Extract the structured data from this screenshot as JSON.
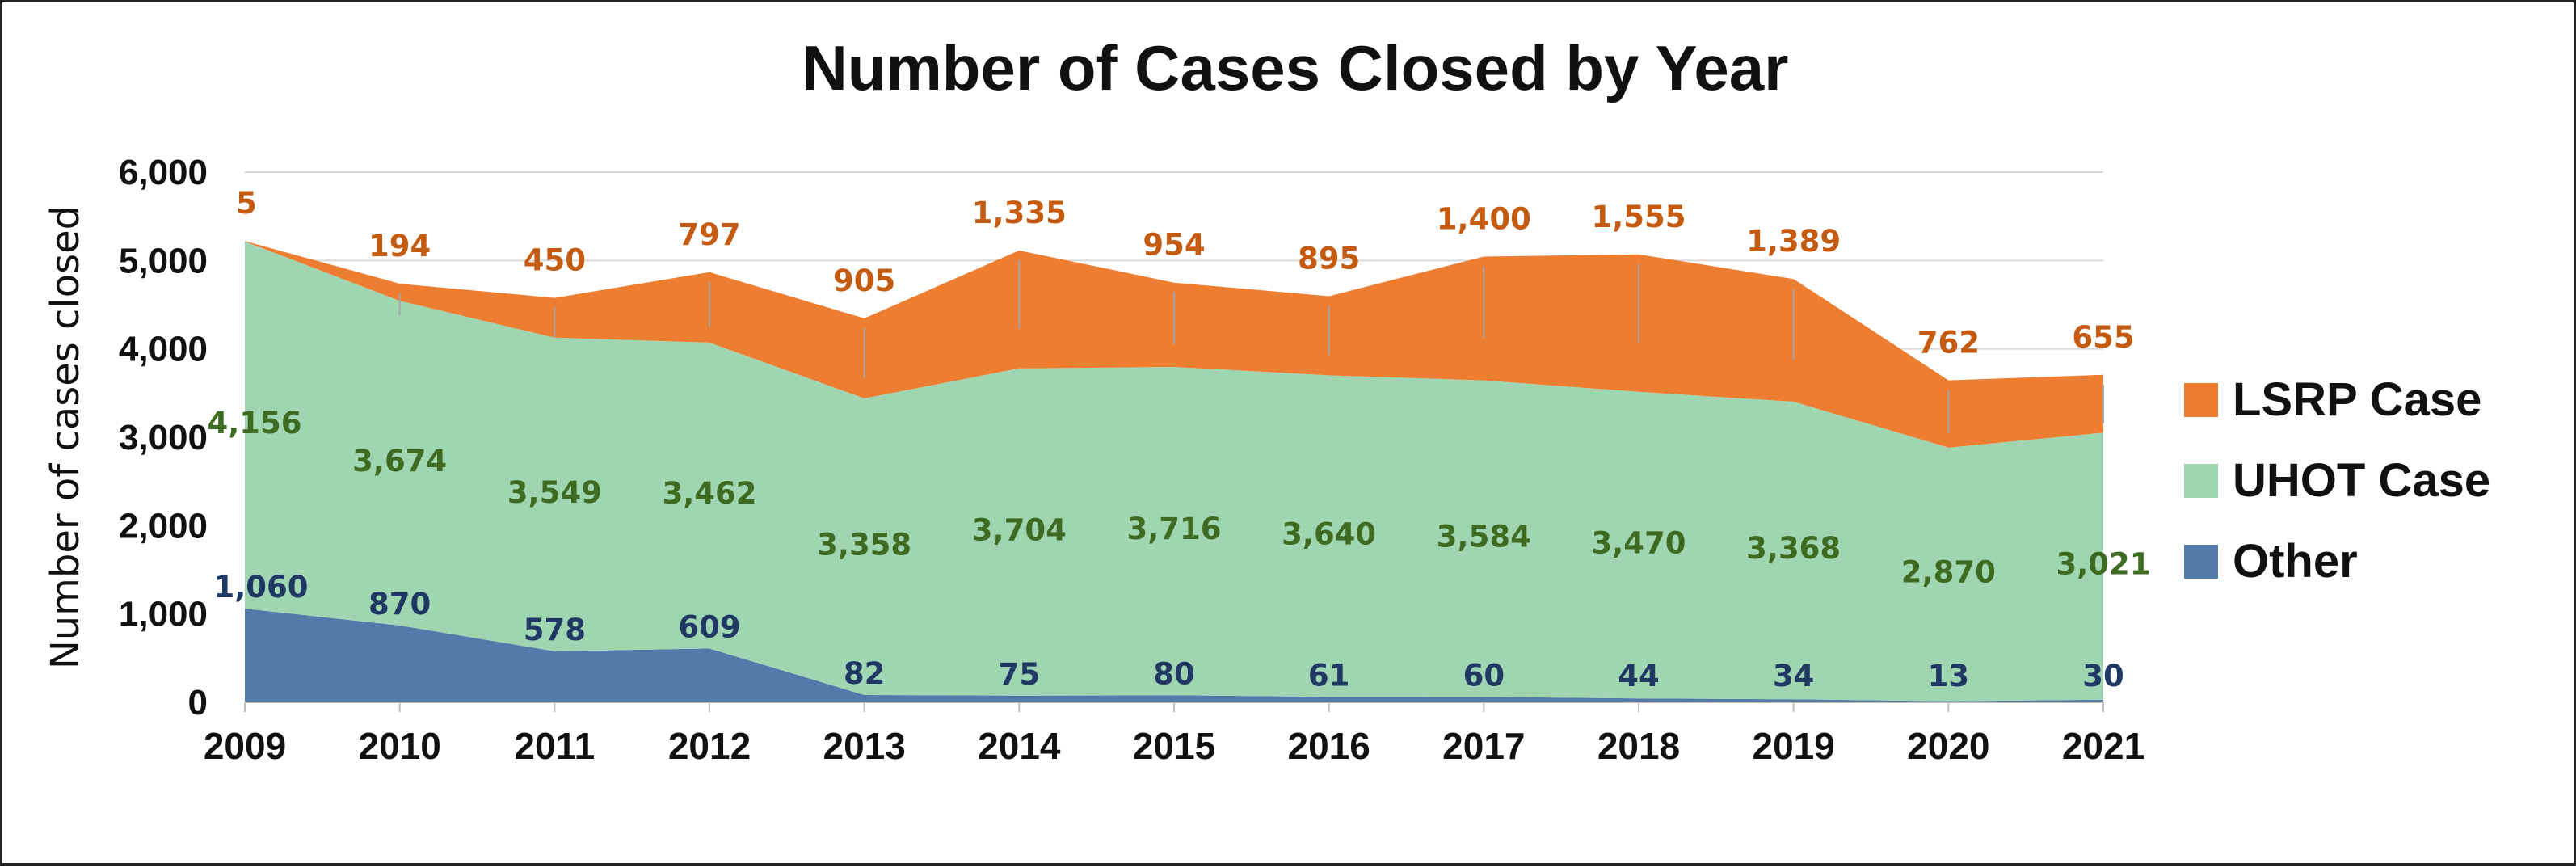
{
  "chart_data": {
    "type": "area",
    "stacked": true,
    "title": "Number of Cases Closed by Year",
    "xlabel": "",
    "ylabel": "Number of cases closed",
    "ylim": [
      0,
      6000
    ],
    "yticks": [
      "0",
      "1,000",
      "2,000",
      "3,000",
      "4,000",
      "5,000",
      "6,000"
    ],
    "ytick_values": [
      0,
      1000,
      2000,
      3000,
      4000,
      5000,
      6000
    ],
    "grid": true,
    "legend_position": "right",
    "categories": [
      "2009",
      "2010",
      "2011",
      "2012",
      "2013",
      "2014",
      "2015",
      "2016",
      "2017",
      "2018",
      "2019",
      "2020",
      "2021"
    ],
    "series": [
      {
        "name": "Other",
        "color": "#5479ab",
        "label_color": "#1f3864",
        "values": [
          1060,
          870,
          578,
          609,
          82,
          75,
          80,
          61,
          60,
          44,
          34,
          13,
          30
        ],
        "labels": [
          "1,060",
          "870",
          "578",
          "609",
          "82",
          "75",
          "80",
          "61",
          "60",
          "44",
          "34",
          "13",
          "30"
        ]
      },
      {
        "name": "UHOT Case",
        "color": "#9fd5b0",
        "label_color": "#3d6b22",
        "values": [
          4156,
          3674,
          3549,
          3462,
          3358,
          3704,
          3716,
          3640,
          3584,
          3470,
          3368,
          2870,
          3021
        ],
        "labels": [
          "4,156",
          "3,674",
          "3,549",
          "3,462",
          "3,358",
          "3,704",
          "3,716",
          "3,640",
          "3,584",
          "3,470",
          "3,368",
          "2,870",
          "3,021"
        ]
      },
      {
        "name": "LSRP Case",
        "color": "#ed7d31",
        "label_color": "#c55a11",
        "values": [
          5,
          194,
          450,
          797,
          905,
          1335,
          954,
          895,
          1400,
          1555,
          1389,
          762,
          655
        ],
        "labels": [
          "5",
          "194",
          "450",
          "797",
          "905",
          "1,335",
          "954",
          "895",
          "1,400",
          "1,555",
          "1,389",
          "762",
          "655"
        ]
      }
    ],
    "legend": [
      "LSRP Case",
      "UHOT Case",
      "Other"
    ]
  }
}
